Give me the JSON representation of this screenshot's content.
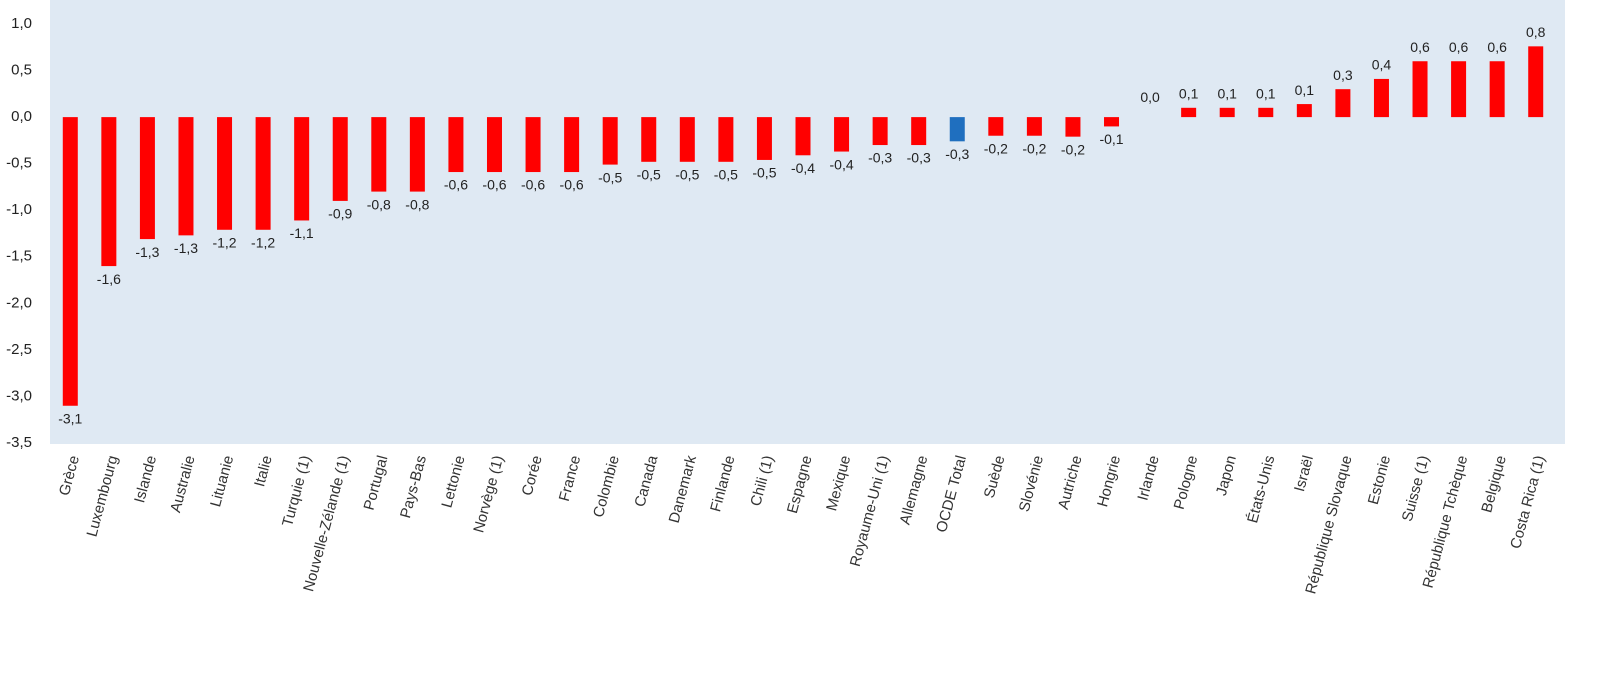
{
  "chart_data": {
    "type": "bar",
    "categories": [
      "Grèce",
      "Luxembourg",
      "Islande",
      "Australie",
      "Lituanie",
      "Italie",
      "Turquie (1)",
      "Nouvelle-Zélande (1)",
      "Portugal",
      "Pays-Bas",
      "Lettonie",
      "Norvège (1)",
      "Corée",
      "France",
      "Colombie",
      "Canada",
      "Danemark",
      "Finlande",
      "Chili (1)",
      "Espagne",
      "Mexique",
      "Royaume-Uni (1)",
      "Allemagne",
      "OCDE Total",
      "Suède",
      "Slovénie",
      "Autriche",
      "Hongrie",
      "Irlande",
      "Pologne",
      "Japon",
      "États-Unis",
      "Israël",
      "République Slovaque",
      "Estonie",
      "Suisse (1)",
      "République Tchèque",
      "Belgique",
      "Costa Rica (1)"
    ],
    "values": [
      -3.1,
      -1.6,
      -1.31,
      -1.27,
      -1.21,
      -1.21,
      -1.11,
      -0.9,
      -0.8,
      -0.8,
      -0.59,
      -0.59,
      -0.59,
      -0.59,
      -0.51,
      -0.48,
      -0.48,
      -0.48,
      -0.46,
      -0.41,
      -0.37,
      -0.3,
      -0.3,
      -0.26,
      -0.2,
      -0.2,
      -0.21,
      -0.1,
      0.0,
      0.1,
      0.1,
      0.1,
      0.14,
      0.3,
      0.41,
      0.6,
      0.6,
      0.6,
      0.76
    ],
    "value_labels": [
      "-3,1",
      "-1,6",
      "-1,3",
      "-1,3",
      "-1,2",
      "-1,2",
      "-1,1",
      "-0,9",
      "-0,8",
      "-0,8",
      "-0,6",
      "-0,6",
      "-0,6",
      "-0,6",
      "-0,5",
      "-0,5",
      "-0,5",
      "-0,5",
      "-0,5",
      "-0,4",
      "-0,4",
      "-0,3",
      "-0,3",
      "-0,3",
      "-0,2",
      "-0,2",
      "-0,2",
      "-0,1",
      "0,0",
      "0,1",
      "0,1",
      "0,1",
      "0,1",
      "0,3",
      "0,4",
      "0,6",
      "0,6",
      "0,6",
      "0,8"
    ],
    "colors": [
      "#ff0000",
      "#ff0000",
      "#ff0000",
      "#ff0000",
      "#ff0000",
      "#ff0000",
      "#ff0000",
      "#ff0000",
      "#ff0000",
      "#ff0000",
      "#ff0000",
      "#ff0000",
      "#ff0000",
      "#ff0000",
      "#ff0000",
      "#ff0000",
      "#ff0000",
      "#ff0000",
      "#ff0000",
      "#ff0000",
      "#ff0000",
      "#ff0000",
      "#ff0000",
      "#1f6fbf",
      "#ff0000",
      "#ff0000",
      "#ff0000",
      "#ff0000",
      "#ff0000",
      "#ff0000",
      "#ff0000",
      "#ff0000",
      "#ff0000",
      "#ff0000",
      "#ff0000",
      "#ff0000",
      "#ff0000",
      "#ff0000",
      "#ff0000"
    ],
    "ylim": [
      -3.5,
      1.0
    ],
    "yticks": [
      {
        "value": -3.5,
        "label": "-3,5"
      },
      {
        "value": -3.0,
        "label": "-3,0"
      },
      {
        "value": -2.5,
        "label": "-2,5"
      },
      {
        "value": -2.0,
        "label": "-2,0"
      },
      {
        "value": -1.5,
        "label": "-1,5"
      },
      {
        "value": -1.0,
        "label": "-1,0"
      },
      {
        "value": -0.5,
        "label": "-0,5"
      },
      {
        "value": 0.0,
        "label": "0,0"
      },
      {
        "value": 0.5,
        "label": "0,5"
      },
      {
        "value": 1.0,
        "label": "1,0"
      }
    ],
    "grid": false
  }
}
